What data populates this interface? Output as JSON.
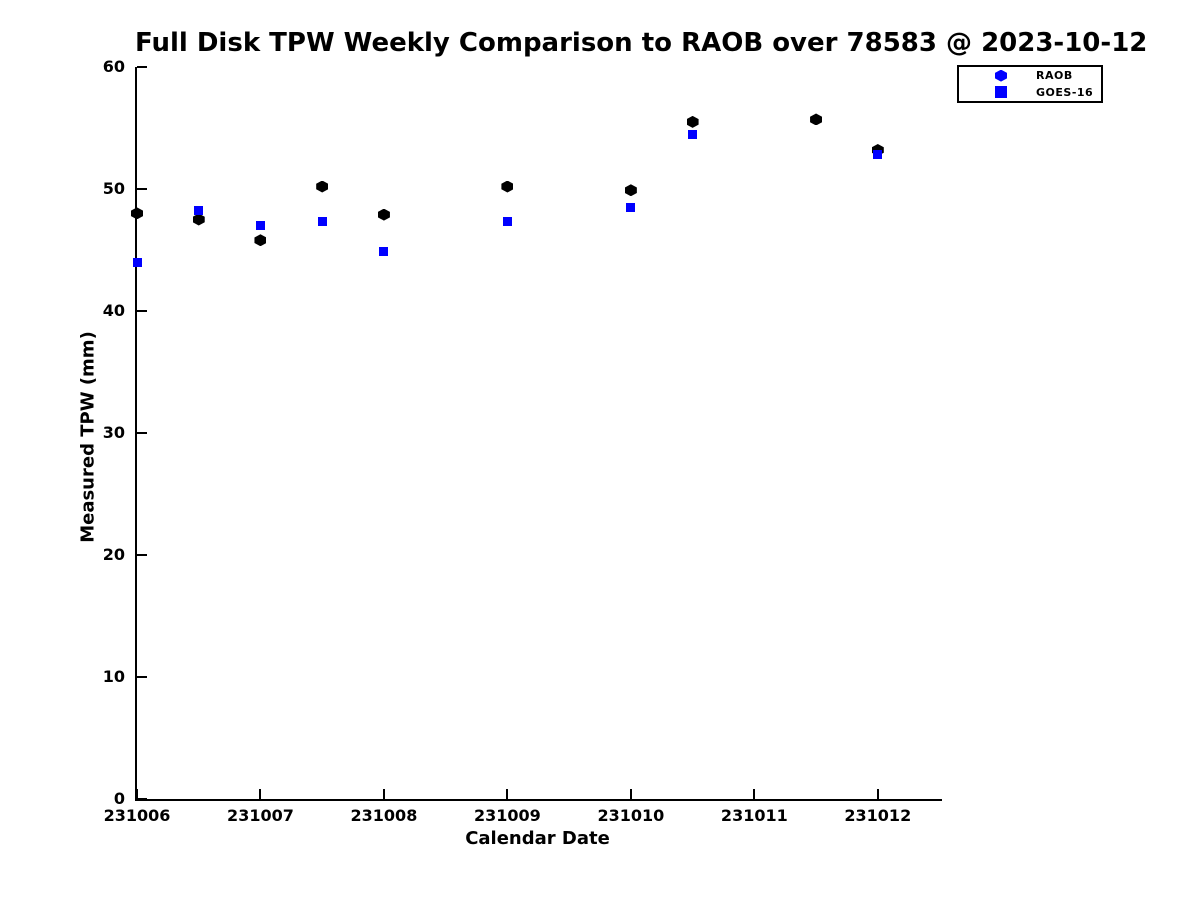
{
  "chart_data": {
    "type": "scatter",
    "title": "Full Disk TPW Weekly Comparison to RAOB over 78583 @ 2023-10-12",
    "xlabel": "Calendar Date",
    "ylabel": "Measured TPW (mm)",
    "xlim": [
      231006,
      231012.52
    ],
    "ylim": [
      0,
      60
    ],
    "xticks": [
      231006,
      231007,
      231008,
      231009,
      231010,
      231011,
      231012
    ],
    "yticks": [
      0,
      10,
      20,
      30,
      40,
      50,
      60
    ],
    "grid": false,
    "axis_color": "#000000",
    "legend": {
      "position": "top-right-outside",
      "entries": [
        {
          "label": "RAOB",
          "marker": "hexagon-icon",
          "marker_color": "#0000ff"
        },
        {
          "label": "GOES-16",
          "marker": "square-icon",
          "marker_color": "#0000ff"
        }
      ]
    },
    "series": [
      {
        "name": "RAOB",
        "marker": "hexagon",
        "color": "#000000",
        "size": 12,
        "points": [
          [
            231006.0,
            48.0
          ],
          [
            231006.5,
            47.5
          ],
          [
            231007.0,
            45.8
          ],
          [
            231007.5,
            50.2
          ],
          [
            231008.0,
            47.9
          ],
          [
            231009.0,
            50.2
          ],
          [
            231010.0,
            49.9
          ],
          [
            231010.5,
            55.5
          ],
          [
            231011.5,
            55.7
          ],
          [
            231012.0,
            53.2
          ]
        ]
      },
      {
        "name": "GOES-16",
        "marker": "square",
        "color": "#0000ff",
        "size": 9,
        "points": [
          [
            231006.0,
            44.0
          ],
          [
            231006.5,
            48.2
          ],
          [
            231007.0,
            47.0
          ],
          [
            231007.5,
            47.3
          ],
          [
            231008.0,
            44.9
          ],
          [
            231009.0,
            47.3
          ],
          [
            231010.0,
            48.5
          ],
          [
            231010.5,
            54.5
          ],
          [
            231012.0,
            52.8
          ]
        ]
      }
    ]
  }
}
